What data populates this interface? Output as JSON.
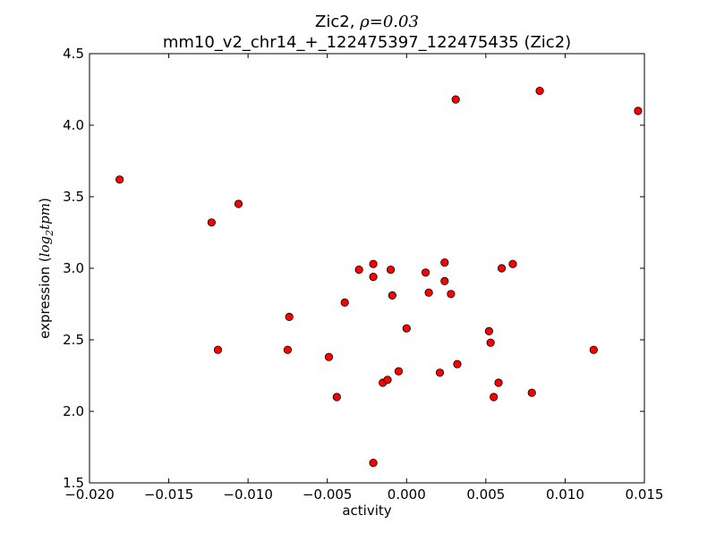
{
  "chart_data": {
    "type": "scatter",
    "title": {
      "prefix": "Zic2, ",
      "rho_symbol": "ρ",
      "rho_value": "=0.03",
      "line2": "mm10_v2_chr14_+_122475397_122475435 (Zic2)"
    },
    "xlabel": "activity",
    "ylabel": {
      "prefix": "expression (",
      "math": "log",
      "sub": "2",
      "math2": "tpm",
      "suffix": ")"
    },
    "xlim": [
      -0.02,
      0.015
    ],
    "ylim": [
      1.5,
      4.5
    ],
    "xticks": [
      -0.02,
      -0.015,
      -0.01,
      -0.005,
      0.0,
      0.005,
      0.01,
      0.015
    ],
    "xtick_labels": [
      "−0.020",
      "−0.015",
      "−0.010",
      "−0.005",
      "0.000",
      "0.005",
      "0.010",
      "0.015"
    ],
    "yticks": [
      1.5,
      2.0,
      2.5,
      3.0,
      3.5,
      4.0,
      4.5
    ],
    "ytick_labels": [
      "1.5",
      "2.0",
      "2.5",
      "3.0",
      "3.5",
      "4.0",
      "4.5"
    ],
    "grid": false,
    "marker_color": "#ff0000",
    "marker_edge_color": "#000000",
    "points": [
      {
        "x": -0.0181,
        "y": 3.62
      },
      {
        "x": -0.0123,
        "y": 3.32
      },
      {
        "x": -0.0106,
        "y": 3.45
      },
      {
        "x": -0.0119,
        "y": 2.43
      },
      {
        "x": -0.0074,
        "y": 2.66
      },
      {
        "x": -0.0075,
        "y": 2.43
      },
      {
        "x": -0.0049,
        "y": 2.38
      },
      {
        "x": -0.0044,
        "y": 2.1
      },
      {
        "x": -0.0039,
        "y": 2.76
      },
      {
        "x": -0.003,
        "y": 2.99
      },
      {
        "x": -0.0021,
        "y": 3.03
      },
      {
        "x": -0.0021,
        "y": 2.94
      },
      {
        "x": -0.0021,
        "y": 1.64
      },
      {
        "x": -0.001,
        "y": 2.99
      },
      {
        "x": -0.0009,
        "y": 2.81
      },
      {
        "x": -0.0015,
        "y": 2.2
      },
      {
        "x": -0.0012,
        "y": 2.22
      },
      {
        "x": -0.0005,
        "y": 2.28
      },
      {
        "x": 0.0,
        "y": 2.58
      },
      {
        "x": 0.0012,
        "y": 2.97
      },
      {
        "x": 0.0014,
        "y": 2.83
      },
      {
        "x": 0.0021,
        "y": 2.27
      },
      {
        "x": 0.0024,
        "y": 3.04
      },
      {
        "x": 0.0024,
        "y": 2.91
      },
      {
        "x": 0.0028,
        "y": 2.82
      },
      {
        "x": 0.0031,
        "y": 4.18
      },
      {
        "x": 0.0032,
        "y": 2.33
      },
      {
        "x": 0.0052,
        "y": 2.56
      },
      {
        "x": 0.0053,
        "y": 2.48
      },
      {
        "x": 0.0055,
        "y": 2.1
      },
      {
        "x": 0.0058,
        "y": 2.2
      },
      {
        "x": 0.006,
        "y": 3.0
      },
      {
        "x": 0.0067,
        "y": 3.03
      },
      {
        "x": 0.0079,
        "y": 2.13
      },
      {
        "x": 0.0084,
        "y": 4.24
      },
      {
        "x": 0.0118,
        "y": 2.43
      },
      {
        "x": 0.0146,
        "y": 4.1
      }
    ]
  }
}
